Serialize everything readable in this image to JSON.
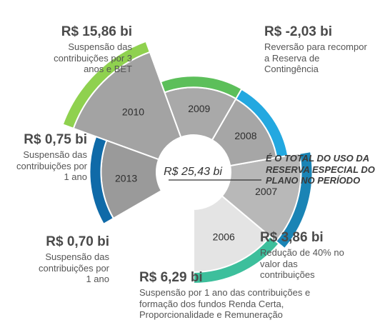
{
  "chart_data": {
    "type": "radial-bar",
    "title": "",
    "total": {
      "value": 25.43,
      "label": "R$ 25,43 bi"
    },
    "note": "É O TOTAL DO USO DA RESERVA ESPECIAL DO PLANO NO PERÍODO",
    "series": [
      {
        "year": "2006",
        "value": 3.86,
        "amount": "R$ 3,86 bi",
        "description": "Redução de 40% no valor das contribuições",
        "color": "#3dbf9c"
      },
      {
        "year": "2007",
        "value": 6.29,
        "amount": "R$ 6,29 bi",
        "description": "Suspensão por 1 ano das contribuições e formação dos fundos Renda Certa, Proporcionalidade e Remuneração",
        "color": "#1a84b5"
      },
      {
        "year": "2008",
        "value": 0.7,
        "amount": "R$ 0,70 bi",
        "description": "Suspensão das contribuições por 1 ano",
        "color": "#23a8e0"
      },
      {
        "year": "2009",
        "value": 0.75,
        "amount": "R$ 0,75 bi",
        "description": "Suspensão das contribuições por 1 ano",
        "color": "#5cbf5a"
      },
      {
        "year": "2010",
        "value": 15.86,
        "amount": "R$ 15,86 bi",
        "description": "Suspensão das contribuições por 3 anos e BET",
        "color": "#8fd14f"
      },
      {
        "year": "2013",
        "value": -2.03,
        "amount": "R$ -2,03 bi",
        "description": "Reversão para recompor a Reserva de Contingência",
        "color": "#0f6aa8"
      }
    ]
  }
}
